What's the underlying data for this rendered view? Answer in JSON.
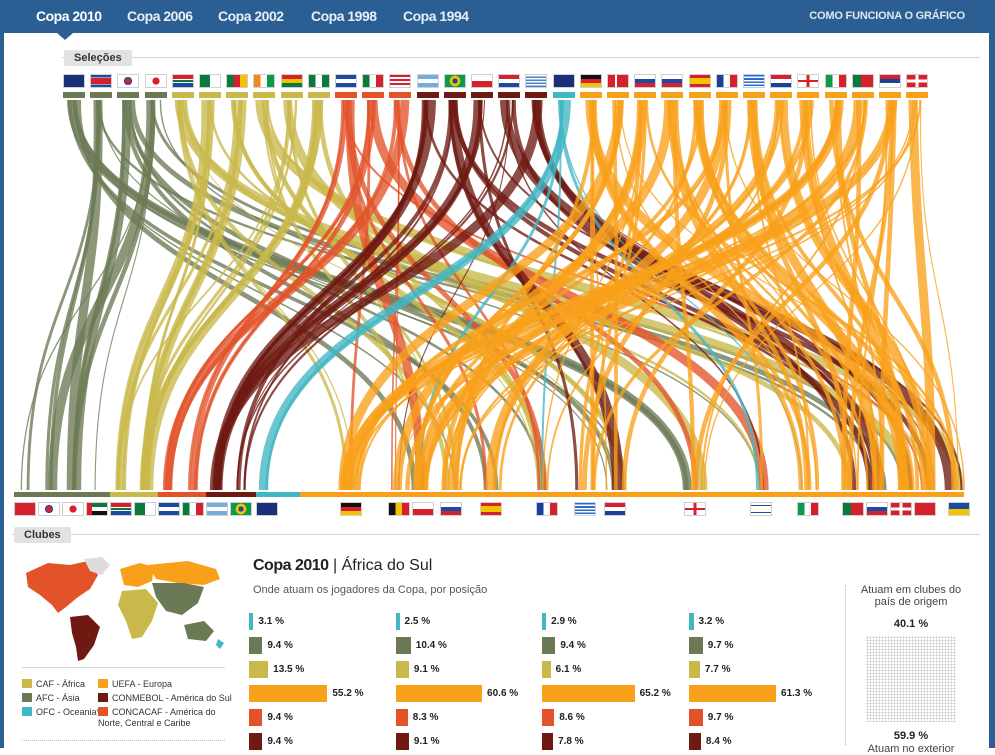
{
  "tabs": [
    {
      "label": "Copa 2010",
      "active": true
    },
    {
      "label": "Copa 2006",
      "active": false
    },
    {
      "label": "Copa 2002",
      "active": false
    },
    {
      "label": "Copa 1998",
      "active": false
    },
    {
      "label": "Copa 1994",
      "active": false
    }
  ],
  "how_link": "COMO FUNCIONA O GRÁFICO",
  "sections": {
    "teams": "Seleções",
    "clubs": "Clubes"
  },
  "colors": {
    "CAF": "#c9b94b",
    "AFC": "#6b7a55",
    "OFC": "#41b6c4",
    "UEFA": "#f9a01b",
    "CONMEBOL": "#6e1a12",
    "CONCACAF": "#e2532a",
    "topbar": "#2b5f94"
  },
  "team_flags": [
    {
      "icon": "australia-flag",
      "conf": "AFC"
    },
    {
      "icon": "north-korea-flag",
      "conf": "AFC"
    },
    {
      "icon": "south-korea-flag",
      "conf": "AFC"
    },
    {
      "icon": "japan-flag",
      "conf": "AFC"
    },
    {
      "icon": "south-africa-flag",
      "conf": "CAF"
    },
    {
      "icon": "algeria-flag",
      "conf": "CAF"
    },
    {
      "icon": "cameroon-flag",
      "conf": "CAF"
    },
    {
      "icon": "ivory-coast-flag",
      "conf": "CAF"
    },
    {
      "icon": "ghana-flag",
      "conf": "CAF"
    },
    {
      "icon": "nigeria-flag",
      "conf": "CAF"
    },
    {
      "icon": "honduras-flag",
      "conf": "CONCACAF"
    },
    {
      "icon": "mexico-flag",
      "conf": "CONCACAF"
    },
    {
      "icon": "usa-flag",
      "conf": "CONCACAF"
    },
    {
      "icon": "argentina-flag",
      "conf": "CONMEBOL"
    },
    {
      "icon": "brazil-flag",
      "conf": "CONMEBOL"
    },
    {
      "icon": "chile-flag",
      "conf": "CONMEBOL"
    },
    {
      "icon": "paraguay-flag",
      "conf": "CONMEBOL"
    },
    {
      "icon": "uruguay-flag",
      "conf": "CONMEBOL"
    },
    {
      "icon": "new-zealand-flag",
      "conf": "OFC"
    },
    {
      "icon": "germany-flag",
      "conf": "UEFA"
    },
    {
      "icon": "denmark-flag",
      "conf": "UEFA"
    },
    {
      "icon": "slovakia-flag",
      "conf": "UEFA"
    },
    {
      "icon": "slovenia-flag",
      "conf": "UEFA"
    },
    {
      "icon": "spain-flag",
      "conf": "UEFA"
    },
    {
      "icon": "france-flag",
      "conf": "UEFA"
    },
    {
      "icon": "greece-flag",
      "conf": "UEFA"
    },
    {
      "icon": "netherlands-flag",
      "conf": "UEFA"
    },
    {
      "icon": "england-flag",
      "conf": "UEFA"
    },
    {
      "icon": "italy-flag",
      "conf": "UEFA"
    },
    {
      "icon": "portugal-flag",
      "conf": "UEFA"
    },
    {
      "icon": "serbia-flag",
      "conf": "UEFA"
    },
    {
      "icon": "switzerland-flag",
      "conf": "UEFA"
    }
  ],
  "club_flags": [
    {
      "icon": "china-flag",
      "conf": "AFC"
    },
    {
      "icon": "south-korea-flag",
      "conf": "AFC"
    },
    {
      "icon": "japan-flag",
      "conf": "AFC"
    },
    {
      "icon": "uae-flag",
      "conf": "AFC"
    },
    {
      "icon": "south-africa-flag",
      "conf": "CAF"
    },
    {
      "icon": "algeria-flag",
      "conf": "CAF"
    },
    {
      "icon": "honduras-flag",
      "conf": "CONCACAF"
    },
    {
      "icon": "mexico-flag",
      "conf": "CONCACAF"
    },
    {
      "icon": "argentina-flag",
      "conf": "CONMEBOL"
    },
    {
      "icon": "brazil-flag",
      "conf": "CONMEBOL"
    },
    {
      "icon": "australia-flag",
      "conf": "OFC"
    },
    {
      "icon": "germany-flag",
      "conf": "UEFA"
    },
    {
      "icon": "belgium-flag",
      "conf": "UEFA"
    },
    {
      "icon": "czech-flag",
      "conf": "UEFA"
    },
    {
      "icon": "slovenia-flag",
      "conf": "UEFA"
    },
    {
      "icon": "spain-flag",
      "conf": "UEFA"
    },
    {
      "icon": "france-flag",
      "conf": "UEFA"
    },
    {
      "icon": "greece-flag",
      "conf": "UEFA"
    },
    {
      "icon": "netherlands-flag",
      "conf": "UEFA"
    },
    {
      "icon": "england-flag",
      "conf": "UEFA"
    },
    {
      "icon": "israel-flag",
      "conf": "UEFA"
    },
    {
      "icon": "italy-flag",
      "conf": "UEFA"
    },
    {
      "icon": "portugal-flag",
      "conf": "UEFA"
    },
    {
      "icon": "russia-flag",
      "conf": "UEFA"
    },
    {
      "icon": "switzerland-flag",
      "conf": "UEFA"
    },
    {
      "icon": "turkey-flag",
      "conf": "UEFA"
    },
    {
      "icon": "ukraine-flag",
      "conf": "UEFA"
    }
  ],
  "legend": [
    {
      "code": "CAF",
      "desc": " - África"
    },
    {
      "code": "AFC",
      "desc": " - Ásia"
    },
    {
      "code": "OFC",
      "desc": " - Oceania*"
    },
    {
      "code": "UEFA",
      "desc": " - Europa"
    },
    {
      "code": "CONMEBOL",
      "desc": " - América do Sul"
    },
    {
      "code": "CONCACAF",
      "desc": " - América do Norte, Central e Caribe"
    }
  ],
  "panel": {
    "title": "Copa 2010",
    "sep": " | ",
    "subtitle": "África do Sul",
    "desc": "Onde atuam os jogadores da Copa, por posição"
  },
  "side": {
    "top_label": "Atuam em clubes do país de origem",
    "top_value": "40.1 %",
    "bottom_value": "59.9 %",
    "bottom_label": "Atuam no exterior"
  },
  "chart_data": {
    "type": "bar",
    "series_order": [
      "OFC",
      "AFC",
      "CAF",
      "UEFA",
      "CONCACAF",
      "CONMEBOL"
    ],
    "columns": [
      {
        "values": [
          3.1,
          9.4,
          13.5,
          55.2,
          9.4,
          9.4
        ],
        "labels": [
          "3.1 %",
          "9.4 %",
          "13.5 %",
          "55.2 %",
          "9.4 %",
          "9.4 %"
        ]
      },
      {
        "values": [
          2.5,
          10.4,
          9.1,
          60.6,
          8.3,
          9.1
        ],
        "labels": [
          "2.5 %",
          "10.4 %",
          "9.1 %",
          "60.6 %",
          "8.3 %",
          "9.1 %"
        ]
      },
      {
        "values": [
          2.9,
          9.4,
          6.1,
          65.2,
          8.6,
          7.8
        ],
        "labels": [
          "2.9 %",
          "9.4 %",
          "6.1 %",
          "65.2 %",
          "8.6 %",
          "7.8 %"
        ]
      },
      {
        "values": [
          3.2,
          9.7,
          7.7,
          61.3,
          9.7,
          8.4
        ],
        "labels": [
          "3.2 %",
          "9.7 %",
          "7.7 %",
          "61.3 %",
          "9.7 %",
          "8.4 %"
        ]
      }
    ]
  }
}
